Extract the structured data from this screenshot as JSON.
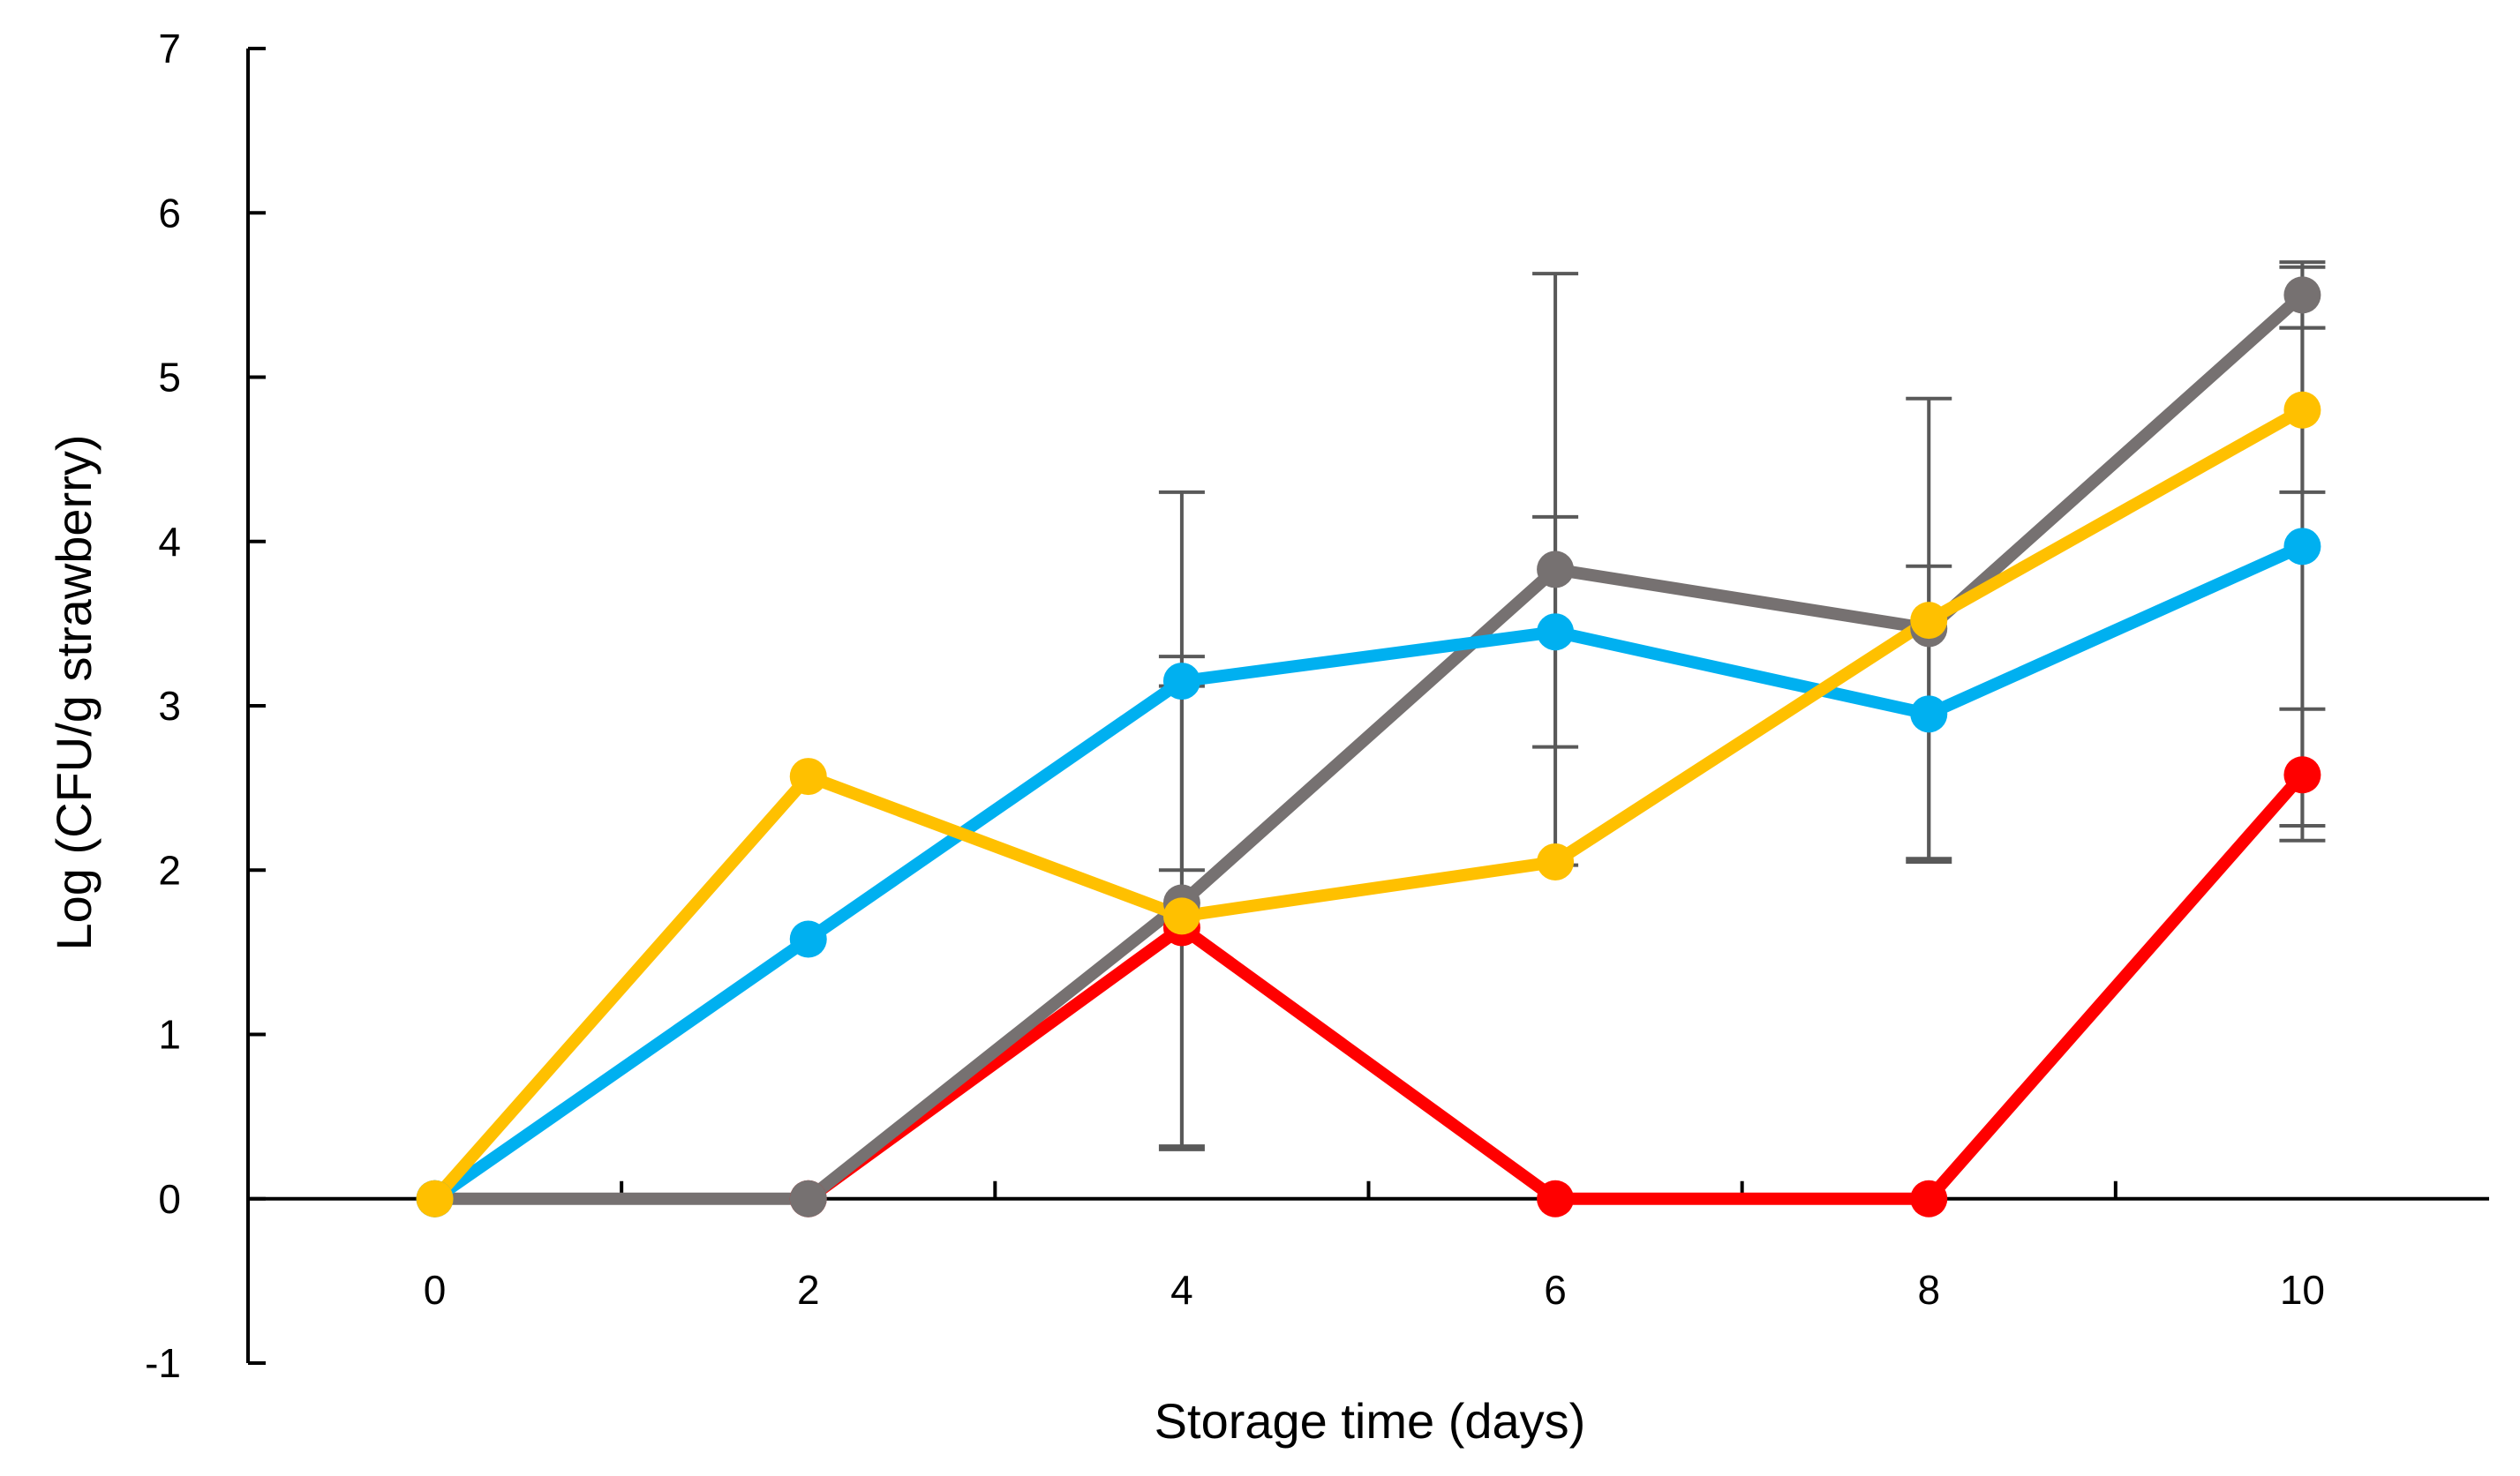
{
  "chart_data": {
    "type": "line",
    "title": "",
    "xlabel": "Storage time (days)",
    "ylabel": "Log (CFU/g strawberry)",
    "x": [
      0,
      2,
      4,
      6,
      8,
      10
    ],
    "x_ticks": [
      "0",
      "2",
      "4",
      "6",
      "8",
      "10"
    ],
    "xlim": [
      -1,
      11
    ],
    "y_ticks": [
      "-1",
      "0",
      "1",
      "2",
      "3",
      "4",
      "5",
      "6",
      "7"
    ],
    "ylim": [
      -1,
      7
    ],
    "legend": "none",
    "series": [
      {
        "name": "red",
        "color": "#FF0000",
        "values": [
          null,
          0,
          1.65,
          0,
          0,
          2.58
        ],
        "errors": [
          null,
          null,
          null,
          null,
          null,
          0.4
        ]
      },
      {
        "name": "gray",
        "color": "#767171",
        "values": [
          0,
          0,
          1.8,
          3.83,
          3.47,
          5.5
        ],
        "errors": [
          null,
          null,
          1.5,
          1.8,
          1.4,
          0.2
        ]
      },
      {
        "name": "blue",
        "color": "#00B0F0",
        "values": [
          0,
          1.58,
          3.15,
          3.45,
          2.95,
          3.97
        ],
        "errors": [
          null,
          null,
          1.15,
          0.7,
          0.9,
          1.7
        ]
      },
      {
        "name": "yellow",
        "color": "#FFC000",
        "values": [
          0,
          2.57,
          1.72,
          2.05,
          3.52,
          4.8
        ],
        "errors": [
          null,
          null,
          1.4,
          null,
          null,
          0.5
        ]
      }
    ]
  }
}
